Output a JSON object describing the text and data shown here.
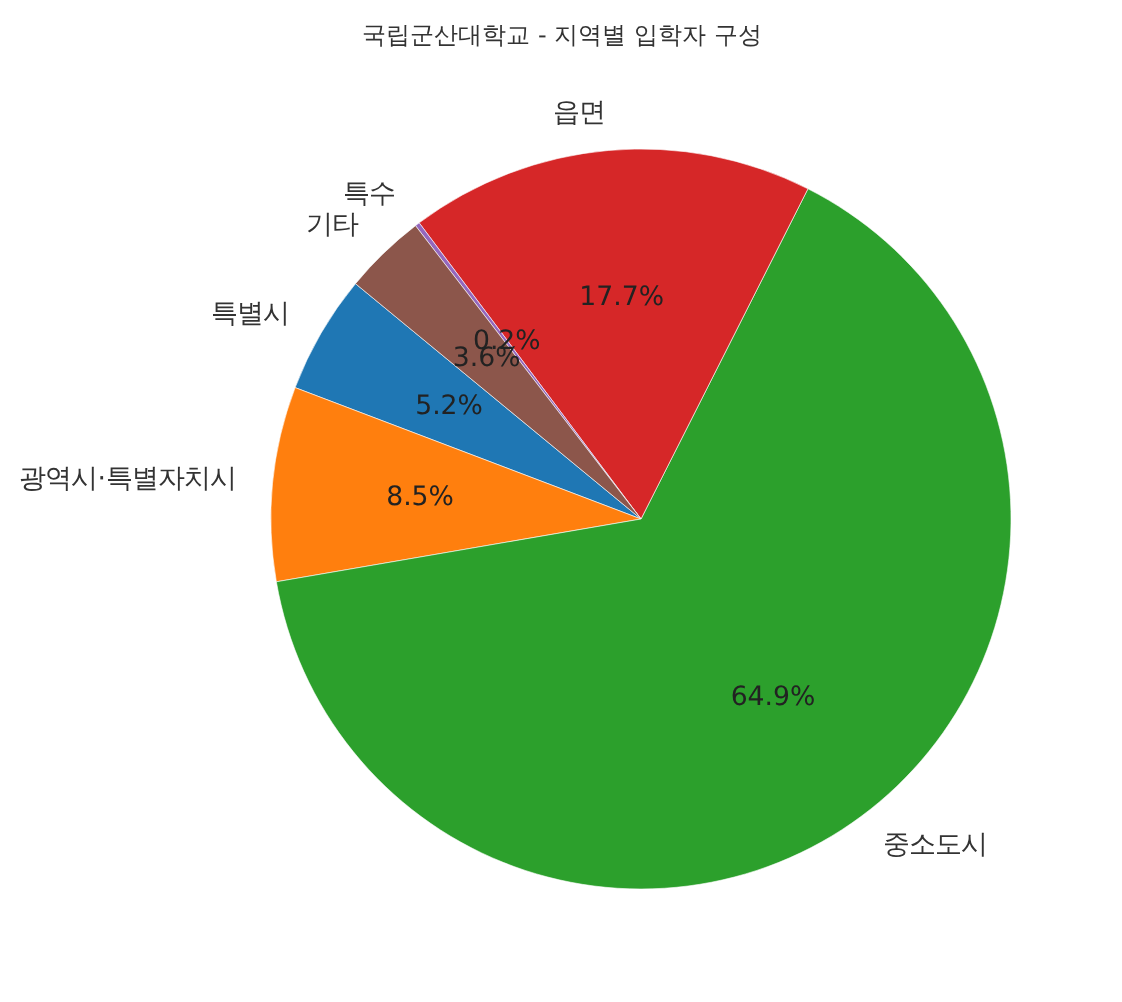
{
  "chart_data": {
    "type": "pie",
    "title": "국립군산대학교 - 지역별 입학자 구성",
    "categories": [
      "특별시",
      "광역시·특별자치시",
      "중소도시",
      "읍면",
      "특수",
      "기타"
    ],
    "values": [
      5.2,
      8.5,
      64.9,
      17.7,
      0.2,
      3.6
    ],
    "colors": [
      "#1f77b4",
      "#ff7f0e",
      "#2ca02c",
      "#d62728",
      "#9467bd",
      "#8c564b"
    ],
    "value_labels": [
      "5.2%",
      "8.5%",
      "64.9%",
      "17.7%",
      "0.2%",
      "3.6%"
    ],
    "legend": false
  }
}
